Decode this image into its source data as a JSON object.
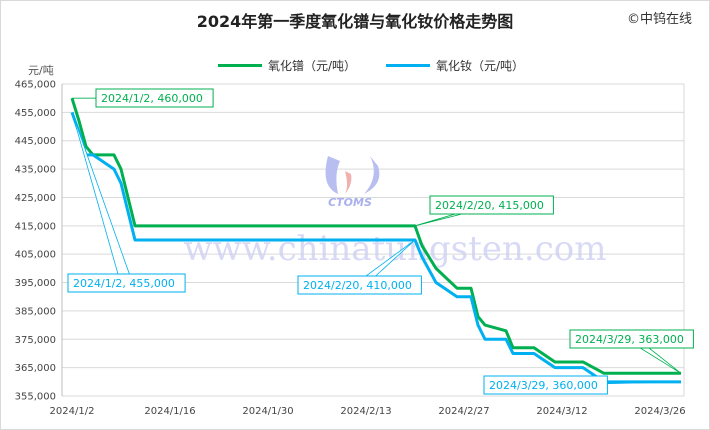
{
  "chart_data": {
    "type": "line",
    "title": "2024年第一季度氧化镨与氧化钕价格走势图",
    "copyright": "©中钨在线",
    "watermark": [
      "CTOMS",
      "www.chinatungsten.com"
    ],
    "ylabel": "元/吨",
    "ylim": [
      355000,
      465000
    ],
    "yticks": [
      355000,
      365000,
      375000,
      385000,
      395000,
      405000,
      415000,
      425000,
      435000,
      445000,
      455000,
      465000
    ],
    "ytick_labels": [
      "355,000",
      "365,000",
      "375,000",
      "385,000",
      "395,000",
      "405,000",
      "415,000",
      "425,000",
      "435,000",
      "445,000",
      "455,000",
      "465,000"
    ],
    "xtick_labels": [
      "2024/1/2",
      "2024/1/16",
      "2024/1/30",
      "2024/2/13",
      "2024/2/27",
      "2024/3/12",
      "2024/3/26"
    ],
    "grid": "horizontal",
    "legend": "top",
    "series": [
      {
        "name": "氧化镨（元/吨）",
        "color": "#00b050",
        "points": [
          [
            "2024/1/2",
            460000
          ],
          [
            "2024/1/3",
            452000
          ],
          [
            "2024/1/4",
            443000
          ],
          [
            "2024/1/5",
            440000
          ],
          [
            "2024/1/8",
            440000
          ],
          [
            "2024/1/9",
            435000
          ],
          [
            "2024/1/11",
            415000
          ],
          [
            "2024/2/20",
            415000
          ],
          [
            "2024/2/21",
            408000
          ],
          [
            "2024/2/23",
            400000
          ],
          [
            "2024/2/26",
            393000
          ],
          [
            "2024/2/28",
            393000
          ],
          [
            "2024/2/29",
            383000
          ],
          [
            "2024/3/1",
            380000
          ],
          [
            "2024/3/4",
            378000
          ],
          [
            "2024/3/5",
            372000
          ],
          [
            "2024/3/8",
            372000
          ],
          [
            "2024/3/11",
            367000
          ],
          [
            "2024/3/15",
            367000
          ],
          [
            "2024/3/18",
            363000
          ],
          [
            "2024/3/29",
            363000
          ]
        ]
      },
      {
        "name": "氧化钕（元/吨）",
        "color": "#00b0f0",
        "points": [
          [
            "2024/1/2",
            455000
          ],
          [
            "2024/1/3",
            448000
          ],
          [
            "2024/1/4",
            440000
          ],
          [
            "2024/1/5",
            440000
          ],
          [
            "2024/1/8",
            435000
          ],
          [
            "2024/1/9",
            430000
          ],
          [
            "2024/1/11",
            410000
          ],
          [
            "2024/2/20",
            410000
          ],
          [
            "2024/2/21",
            404000
          ],
          [
            "2024/2/23",
            395000
          ],
          [
            "2024/2/26",
            390000
          ],
          [
            "2024/2/28",
            390000
          ],
          [
            "2024/2/29",
            380000
          ],
          [
            "2024/3/1",
            375000
          ],
          [
            "2024/3/4",
            375000
          ],
          [
            "2024/3/5",
            370000
          ],
          [
            "2024/3/8",
            370000
          ],
          [
            "2024/3/11",
            365000
          ],
          [
            "2024/3/15",
            365000
          ],
          [
            "2024/3/18",
            360000
          ],
          [
            "2024/3/29",
            360000
          ]
        ]
      }
    ],
    "annotations": [
      {
        "series": 0,
        "text": "2024/1/2, 460,000"
      },
      {
        "series": 1,
        "text": "2024/1/2, 455,000"
      },
      {
        "series": 0,
        "text": "2024/2/20, 415,000"
      },
      {
        "series": 1,
        "text": "2024/2/20, 410,000"
      },
      {
        "series": 0,
        "text": "2024/3/29, 363,000"
      },
      {
        "series": 1,
        "text": "2024/3/29, 360,000"
      }
    ]
  }
}
